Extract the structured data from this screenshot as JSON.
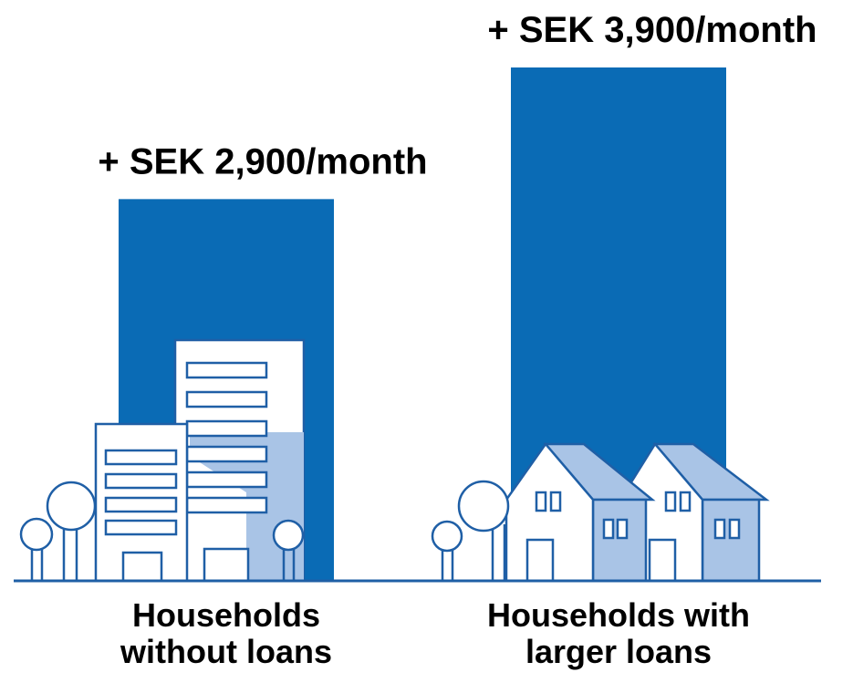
{
  "chart_data": {
    "type": "bar",
    "categories": [
      "Households without loans",
      "Households with larger loans"
    ],
    "values": [
      2900,
      3900
    ],
    "value_labels": [
      "+ SEK 2,900/month",
      "+ SEK 3,900/month"
    ],
    "color": "#0a6bb5"
  }
}
